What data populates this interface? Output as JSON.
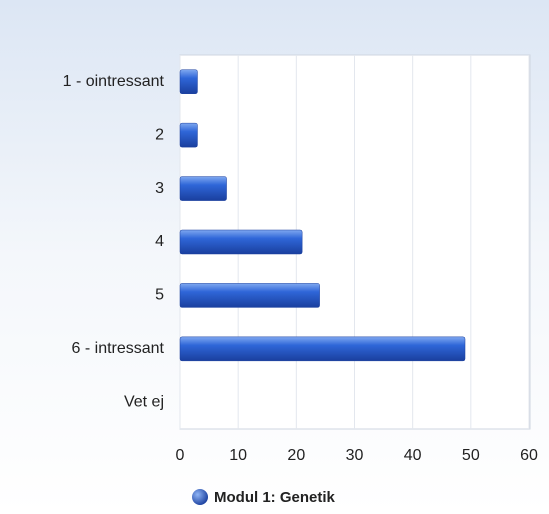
{
  "chart_data": {
    "type": "hbar",
    "categories": [
      "1 - ointressant",
      "2",
      "3",
      "4",
      "5",
      "6 - intressant",
      "Vet ej"
    ],
    "series": [
      {
        "name": "Modul 1: Genetik",
        "color": "#2a5fd6",
        "values": [
          3,
          3,
          8,
          21,
          24,
          49,
          0
        ]
      }
    ],
    "xlim": [
      0,
      60
    ],
    "xticks": [
      0,
      10,
      20,
      30,
      40,
      50,
      60
    ],
    "grid": true,
    "legend": "bottom"
  }
}
